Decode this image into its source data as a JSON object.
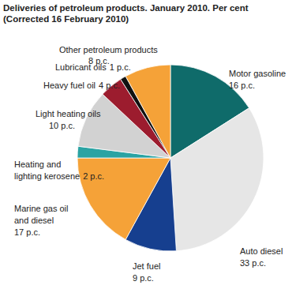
{
  "chart_data": {
    "type": "pie",
    "title": "Deliveries of petroleum products. January 2010. Per cent",
    "subtitle": "(Corrected 16 February 2010)",
    "categories": [
      "Motor gasoline",
      "Auto diesel",
      "Jet fuel",
      "Marine gas oil and diesel",
      "Heating and lighting kerosene",
      "Light heating oils",
      "Heavy fuel oil",
      "Lubricant oils",
      "Other petroleum products"
    ],
    "values": [
      16,
      33,
      9,
      17,
      2,
      10,
      4,
      1,
      8
    ],
    "value_labels": [
      "16 p.c.",
      "33 p.c.",
      "9 p.c.",
      "17 p.c.",
      "2 p.c.",
      "10 p.c.",
      "4 p.c.",
      "1 p.c.",
      "8 p.c."
    ],
    "colors": [
      "#0f6b6a",
      "#e6e6e6",
      "#163f8f",
      "#f5a238",
      "#2aa3a3",
      "#d2d2d2",
      "#9c1c2e",
      "#111111",
      "#f5a238"
    ],
    "data_labels": true
  }
}
